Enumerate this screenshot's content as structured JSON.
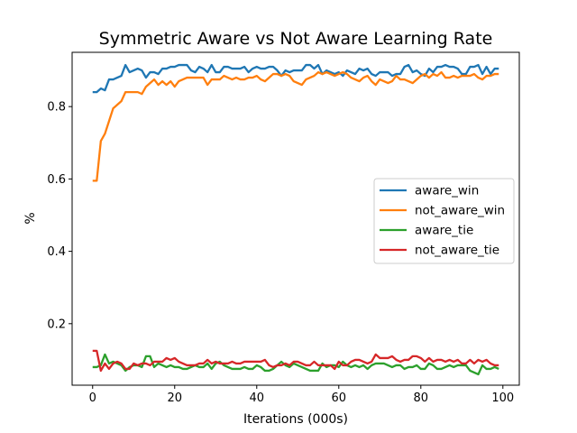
{
  "chart_data": {
    "type": "line",
    "title": "Symmetric Aware vs Not Aware Learning Rate",
    "xlabel": "Iterations (000s)",
    "ylabel": "%",
    "xlim": [
      -5,
      104
    ],
    "ylim": [
      0.03,
      0.95
    ],
    "xticks": [
      0,
      20,
      40,
      60,
      80,
      100
    ],
    "yticks": [
      0.2,
      0.4,
      0.6,
      0.8
    ],
    "grid": false,
    "legend_position": "center-right",
    "series": [
      {
        "name": "aware_win",
        "color": "#1f77b4",
        "values": [
          0.84,
          0.84,
          0.85,
          0.845,
          0.875,
          0.875,
          0.88,
          0.885,
          0.915,
          0.895,
          0.9,
          0.905,
          0.9,
          0.88,
          0.895,
          0.895,
          0.89,
          0.905,
          0.905,
          0.91,
          0.91,
          0.915,
          0.915,
          0.915,
          0.9,
          0.895,
          0.91,
          0.905,
          0.895,
          0.915,
          0.895,
          0.895,
          0.91,
          0.91,
          0.905,
          0.905,
          0.905,
          0.91,
          0.895,
          0.905,
          0.91,
          0.905,
          0.905,
          0.91,
          0.91,
          0.9,
          0.885,
          0.9,
          0.895,
          0.9,
          0.9,
          0.9,
          0.915,
          0.915,
          0.905,
          0.915,
          0.89,
          0.9,
          0.895,
          0.89,
          0.895,
          0.885,
          0.9,
          0.895,
          0.89,
          0.905,
          0.9,
          0.905,
          0.89,
          0.885,
          0.895,
          0.895,
          0.895,
          0.885,
          0.89,
          0.89,
          0.91,
          0.915,
          0.895,
          0.9,
          0.89,
          0.885,
          0.905,
          0.895,
          0.91,
          0.91,
          0.915,
          0.91,
          0.91,
          0.905,
          0.89,
          0.89,
          0.91,
          0.91,
          0.915,
          0.89,
          0.91,
          0.89,
          0.905,
          0.905
        ]
      },
      {
        "name": "not_aware_win",
        "color": "#ff7f0e",
        "values": [
          0.595,
          0.595,
          0.705,
          0.725,
          0.76,
          0.795,
          0.805,
          0.815,
          0.84,
          0.84,
          0.84,
          0.84,
          0.835,
          0.855,
          0.865,
          0.875,
          0.86,
          0.87,
          0.86,
          0.87,
          0.855,
          0.87,
          0.875,
          0.88,
          0.88,
          0.88,
          0.88,
          0.88,
          0.86,
          0.875,
          0.875,
          0.875,
          0.885,
          0.88,
          0.875,
          0.88,
          0.875,
          0.875,
          0.88,
          0.88,
          0.885,
          0.875,
          0.87,
          0.88,
          0.89,
          0.89,
          0.885,
          0.89,
          0.885,
          0.87,
          0.865,
          0.86,
          0.875,
          0.88,
          0.885,
          0.895,
          0.89,
          0.895,
          0.89,
          0.885,
          0.89,
          0.895,
          0.89,
          0.88,
          0.875,
          0.87,
          0.88,
          0.885,
          0.87,
          0.86,
          0.875,
          0.87,
          0.865,
          0.87,
          0.885,
          0.875,
          0.875,
          0.87,
          0.865,
          0.875,
          0.885,
          0.89,
          0.88,
          0.89,
          0.885,
          0.895,
          0.88,
          0.88,
          0.885,
          0.88,
          0.885,
          0.885,
          0.885,
          0.89,
          0.88,
          0.875,
          0.885,
          0.885,
          0.89,
          0.89
        ]
      },
      {
        "name": "aware_tie",
        "color": "#2ca02c",
        "values": [
          0.08,
          0.08,
          0.085,
          0.115,
          0.09,
          0.095,
          0.09,
          0.085,
          0.07,
          0.08,
          0.085,
          0.085,
          0.08,
          0.11,
          0.11,
          0.08,
          0.09,
          0.085,
          0.08,
          0.085,
          0.08,
          0.08,
          0.075,
          0.075,
          0.08,
          0.085,
          0.08,
          0.08,
          0.09,
          0.075,
          0.09,
          0.095,
          0.085,
          0.08,
          0.075,
          0.075,
          0.075,
          0.08,
          0.075,
          0.075,
          0.085,
          0.08,
          0.07,
          0.07,
          0.075,
          0.085,
          0.095,
          0.085,
          0.08,
          0.09,
          0.085,
          0.08,
          0.075,
          0.07,
          0.07,
          0.07,
          0.09,
          0.08,
          0.085,
          0.085,
          0.08,
          0.095,
          0.085,
          0.08,
          0.085,
          0.08,
          0.085,
          0.075,
          0.085,
          0.09,
          0.09,
          0.09,
          0.085,
          0.08,
          0.085,
          0.085,
          0.075,
          0.08,
          0.08,
          0.085,
          0.075,
          0.075,
          0.09,
          0.085,
          0.075,
          0.075,
          0.08,
          0.085,
          0.08,
          0.085,
          0.085,
          0.085,
          0.07,
          0.065,
          0.06,
          0.085,
          0.075,
          0.075,
          0.08,
          0.075
        ]
      },
      {
        "name": "not_aware_tie",
        "color": "#d62728",
        "values": [
          0.125,
          0.125,
          0.07,
          0.09,
          0.075,
          0.09,
          0.095,
          0.09,
          0.075,
          0.075,
          0.09,
          0.085,
          0.09,
          0.09,
          0.085,
          0.095,
          0.095,
          0.095,
          0.105,
          0.1,
          0.105,
          0.095,
          0.09,
          0.085,
          0.085,
          0.085,
          0.09,
          0.09,
          0.1,
          0.09,
          0.095,
          0.09,
          0.09,
          0.09,
          0.095,
          0.09,
          0.09,
          0.095,
          0.095,
          0.095,
          0.095,
          0.095,
          0.1,
          0.085,
          0.08,
          0.085,
          0.085,
          0.09,
          0.085,
          0.095,
          0.095,
          0.09,
          0.085,
          0.085,
          0.095,
          0.085,
          0.085,
          0.085,
          0.085,
          0.075,
          0.095,
          0.085,
          0.085,
          0.095,
          0.1,
          0.1,
          0.095,
          0.09,
          0.095,
          0.115,
          0.105,
          0.105,
          0.105,
          0.11,
          0.1,
          0.095,
          0.1,
          0.1,
          0.11,
          0.11,
          0.105,
          0.095,
          0.105,
          0.095,
          0.1,
          0.1,
          0.095,
          0.1,
          0.095,
          0.1,
          0.09,
          0.09,
          0.1,
          0.09,
          0.1,
          0.095,
          0.1,
          0.09,
          0.085,
          0.085
        ]
      }
    ]
  }
}
